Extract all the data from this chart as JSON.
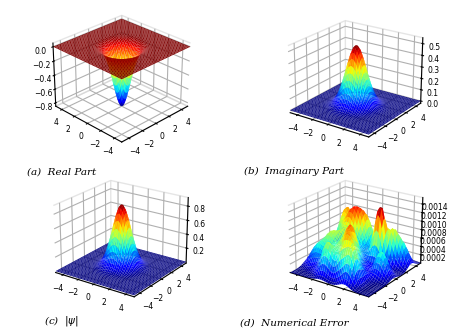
{
  "subtitles": [
    "(a)  Real Part",
    "(b)  Imaginary Part",
    "(c)  $|\\psi|$",
    "(d)  Numerical Error"
  ],
  "xlim": [
    -5,
    5
  ],
  "ylim": [
    -5,
    5
  ],
  "grid_points": 50,
  "cmap": "jet",
  "background_color": "#ffffff",
  "subtitle_fontsize": 7.5,
  "tick_fontsize": 5.5,
  "view_elev_a": 28,
  "view_azim_a": -135,
  "view_elev_b": 22,
  "view_azim_b": -55,
  "view_elev_c": 22,
  "view_azim_c": -55,
  "view_elev_d": 22,
  "view_azim_d": -55,
  "real_zlim": [
    -0.85,
    0.05
  ],
  "imag_zlim": [
    -0.02,
    0.55
  ],
  "abs_zlim": [
    -0.02,
    0.92
  ],
  "err_zlim": [
    0.0,
    0.00155
  ],
  "real_zticks": [
    0.0,
    -0.2,
    -0.4,
    -0.6,
    -0.8
  ],
  "imag_zticks": [
    0.0,
    0.1,
    0.2,
    0.3,
    0.4,
    0.5
  ],
  "abs_zticks": [
    0.2,
    0.4,
    0.6,
    0.8
  ],
  "err_zticks": [
    0.0002,
    0.0004,
    0.0006,
    0.0008,
    0.001,
    0.0012,
    0.0014
  ]
}
